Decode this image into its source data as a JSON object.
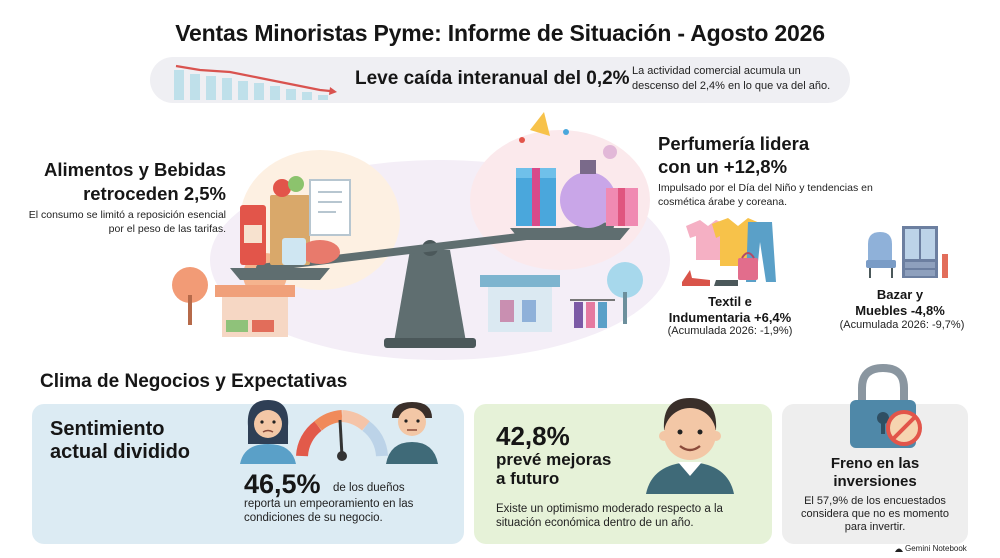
{
  "title": "Ventas Minoristas Pyme: Informe de Situación - Agosto 2026",
  "summary": {
    "headline": "Leve caída interanual del 0,2%",
    "detail": "La actividad comercial acumula un descenso del 2,4% en lo que va del año."
  },
  "food": {
    "title_line1": "Alimentos y Bebidas",
    "title_line2": "retroceden 2,5%",
    "desc": "El consumo se limitó a reposición esencial por el peso de las tarifas."
  },
  "perfume": {
    "title_line1": "Perfumería lidera",
    "title_line2": "con un +12,8%",
    "desc": "Impulsado por el Día del Niño y tendencias en cosmética árabe y coreana."
  },
  "textil": {
    "title_line1": "Textil e",
    "title_line2": "Indumentaria +6,4%",
    "note": "(Acumulada 2026: -1,9%)"
  },
  "bazar": {
    "title_line1": "Bazar y",
    "title_line2": "Muebles -4,8%",
    "note": "(Acumulada 2026: -9,7%)"
  },
  "section_title": "Clima de Negocios y Expectativas",
  "sentiment": {
    "title_line1": "Sentimiento",
    "title_line2": "actual dividido",
    "big": "46,5%",
    "small": "de los dueños",
    "desc": "reporta un empeoramiento en las condiciones de su negocio."
  },
  "future": {
    "big": "42,8%",
    "sub_line1": "prevé mejoras",
    "sub_line2": "a futuro",
    "desc": "Existe un optimismo moderado respecto a la situación económica dentro de un año."
  },
  "invest": {
    "title_line1": "Freno en las",
    "title_line2": "inversiones",
    "desc": "El 57,9% de los encuestados considera que no es momento para invertir."
  },
  "watermark": "Gemini Notebook",
  "colors": {
    "summary_bg": "#efeff3",
    "card_blue": "#dcebf3",
    "card_green": "#e6f2d8",
    "card_gray": "#eeeeee",
    "scale_gray": "#5f6e70",
    "trend_red": "#d9534f"
  }
}
